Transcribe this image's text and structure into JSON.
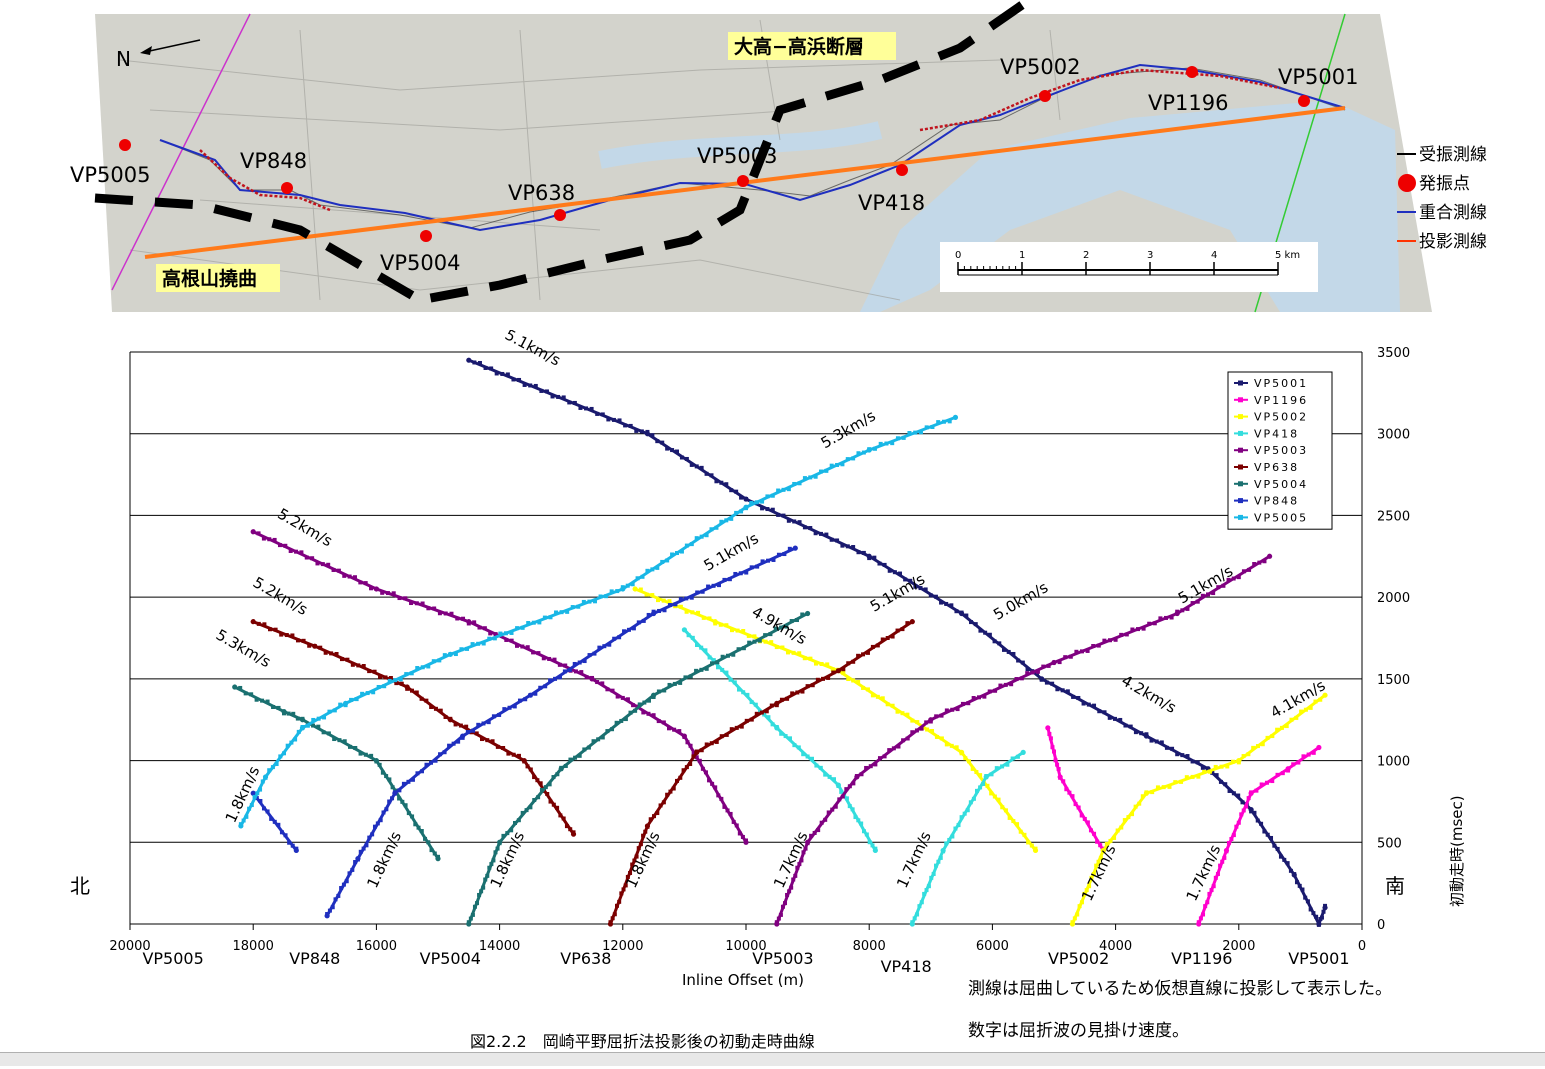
{
  "map": {
    "north_label": "N",
    "fault_label": "大高−高浜断層",
    "flexure_label": "高根山撓曲",
    "vp_labels": [
      {
        "name": "VP5005",
        "lx": 70,
        "ly": 182,
        "dx": 125,
        "dy": 145
      },
      {
        "name": "VP848",
        "lx": 240,
        "ly": 168,
        "dx": 287,
        "dy": 188
      },
      {
        "name": "VP5004",
        "lx": 380,
        "ly": 270,
        "dx": 426,
        "dy": 236
      },
      {
        "name": "VP638",
        "lx": 508,
        "ly": 200,
        "dx": 560,
        "dy": 215
      },
      {
        "name": "VP5003",
        "lx": 697,
        "ly": 163,
        "dx": 743,
        "dy": 181
      },
      {
        "name": "VP418",
        "lx": 858,
        "ly": 210,
        "dx": 902,
        "dy": 170
      },
      {
        "name": "VP5002",
        "lx": 1000,
        "ly": 74,
        "dx": 1045,
        "dy": 96
      },
      {
        "name": "VP1196",
        "lx": 1148,
        "ly": 110,
        "dx": 1192,
        "dy": 72
      },
      {
        "name": "VP5001",
        "lx": 1278,
        "ly": 84,
        "dx": 1304,
        "dy": 101
      }
    ],
    "legend": [
      {
        "label": "受振測線",
        "kind": "line",
        "color": "#000000"
      },
      {
        "label": "発振点",
        "kind": "dot",
        "color": "#ee0000"
      },
      {
        "label": "重合測線",
        "kind": "line",
        "color": "#1f2fbf"
      },
      {
        "label": "投影測線",
        "kind": "line",
        "color": "#ff3300"
      }
    ],
    "scale_ticks": [
      "0",
      "1",
      "2",
      "3",
      "4",
      "5 km"
    ]
  },
  "chart_data": {
    "type": "scatter",
    "xlabel": "Inline Offset (m)",
    "ylabel": "初動走時(msec)",
    "xlim": [
      20000,
      0
    ],
    "ylim": [
      0,
      3500
    ],
    "x_ticks": [
      20000,
      18000,
      16000,
      14000,
      12000,
      10000,
      8000,
      6000,
      4000,
      2000,
      0
    ],
    "x_tick_labels": [
      "20000",
      "18000",
      "16000",
      "14000",
      "12000",
      "10000",
      "8000",
      "6000",
      "4000",
      "2000",
      "0"
    ],
    "y_ticks": [
      0,
      500,
      1000,
      1500,
      2000,
      2500,
      3000,
      3500
    ],
    "y_tick_labels": [
      "0",
      "500",
      "1000",
      "1500",
      "2000",
      "2500",
      "3000",
      "3500"
    ],
    "grid": true,
    "legend_position": "top-right",
    "vp_axis_labels": [
      {
        "label": "VP5005",
        "x": 19300,
        "row": 0
      },
      {
        "label": "VP848",
        "x": 17000,
        "row": 0
      },
      {
        "label": "VP5004",
        "x": 14800,
        "row": 0
      },
      {
        "label": "VP638",
        "x": 12600,
        "row": 0
      },
      {
        "label": "VP5003",
        "x": 9400,
        "row": 0
      },
      {
        "label": "VP418",
        "x": 7400,
        "row": 1
      },
      {
        "label": "VP5002",
        "x": 4600,
        "row": 0
      },
      {
        "label": "VP1196",
        "x": 2600,
        "row": 0
      },
      {
        "label": "VP5001",
        "x": 700,
        "row": 0
      }
    ],
    "series": [
      {
        "name": "VP5001",
        "color": "#1a1a6e",
        "points": [
          [
            600,
            100
          ],
          [
            700,
            0
          ],
          [
            1100,
            300
          ],
          [
            1800,
            700
          ],
          [
            2500,
            950
          ],
          [
            3500,
            1150
          ],
          [
            5200,
            1500
          ],
          [
            6500,
            1900
          ],
          [
            8000,
            2250
          ],
          [
            10000,
            2600
          ],
          [
            11600,
            3000
          ],
          [
            14500,
            3450
          ]
        ]
      },
      {
        "name": "VP1196",
        "color": "#ff00cc",
        "points": [
          [
            2650,
            0
          ],
          [
            2200,
            450
          ],
          [
            1800,
            800
          ],
          [
            1200,
            950
          ],
          [
            700,
            1080
          ],
          [
            4200,
            450
          ],
          [
            4900,
            900
          ],
          [
            5100,
            1200
          ]
        ]
      },
      {
        "name": "VP5002",
        "color": "#ffff00",
        "points": [
          [
            4700,
            0
          ],
          [
            4200,
            450
          ],
          [
            3500,
            800
          ],
          [
            2000,
            1000
          ],
          [
            600,
            1400
          ],
          [
            5300,
            450
          ],
          [
            6500,
            1050
          ],
          [
            8500,
            1550
          ],
          [
            10500,
            1850
          ],
          [
            11800,
            2050
          ]
        ]
      },
      {
        "name": "VP418",
        "color": "#33dddd",
        "points": [
          [
            7300,
            0
          ],
          [
            6800,
            450
          ],
          [
            6100,
            900
          ],
          [
            5500,
            1050
          ],
          [
            7900,
            450
          ],
          [
            8500,
            850
          ],
          [
            9500,
            1200
          ],
          [
            11000,
            1800
          ]
        ]
      },
      {
        "name": "VP5003",
        "color": "#800080",
        "points": [
          [
            9500,
            0
          ],
          [
            9000,
            500
          ],
          [
            8200,
            900
          ],
          [
            7000,
            1250
          ],
          [
            5000,
            1600
          ],
          [
            3000,
            1900
          ],
          [
            1500,
            2250
          ],
          [
            10000,
            500
          ],
          [
            11000,
            1150
          ],
          [
            12500,
            1500
          ],
          [
            14500,
            1850
          ],
          [
            16000,
            2050
          ],
          [
            18000,
            2400
          ]
        ]
      },
      {
        "name": "VP638",
        "color": "#7b0000",
        "points": [
          [
            12200,
            0
          ],
          [
            11600,
            600
          ],
          [
            10800,
            1050
          ],
          [
            9500,
            1350
          ],
          [
            8500,
            1550
          ],
          [
            7300,
            1850
          ],
          [
            12800,
            550
          ],
          [
            13600,
            1000
          ],
          [
            14800,
            1250
          ],
          [
            15500,
            1450
          ],
          [
            17000,
            1700
          ],
          [
            18000,
            1850
          ]
        ]
      },
      {
        "name": "VP5004",
        "color": "#1a7070",
        "points": [
          [
            14500,
            0
          ],
          [
            14000,
            500
          ],
          [
            13000,
            950
          ],
          [
            11500,
            1400
          ],
          [
            9000,
            1900
          ],
          [
            15000,
            400
          ],
          [
            16000,
            1000
          ],
          [
            17200,
            1250
          ],
          [
            17500,
            1300
          ],
          [
            18300,
            1450
          ]
        ]
      },
      {
        "name": "VP848",
        "color": "#1f2fbf",
        "points": [
          [
            16800,
            50
          ],
          [
            16300,
            400
          ],
          [
            15700,
            800
          ],
          [
            14600,
            1150
          ],
          [
            13500,
            1400
          ],
          [
            11500,
            1900
          ],
          [
            9200,
            2300
          ],
          [
            17300,
            450
          ],
          [
            18000,
            800
          ]
        ]
      },
      {
        "name": "VP5005",
        "color": "#19b7e6",
        "points": [
          [
            18200,
            600
          ],
          [
            17800,
            900
          ],
          [
            17200,
            1200
          ],
          [
            16500,
            1350
          ],
          [
            14800,
            1650
          ],
          [
            12000,
            2050
          ],
          [
            10000,
            2550
          ],
          [
            8000,
            2900
          ],
          [
            6600,
            3100
          ]
        ]
      }
    ],
    "velocity_labels": [
      {
        "text": "5.1km/s",
        "x": 13500,
        "y": 3500,
        "angle": 28
      },
      {
        "text": "5.3km/s",
        "x": 8300,
        "y": 3000,
        "angle": -30
      },
      {
        "text": "5.2km/s",
        "x": 17200,
        "y": 2400,
        "angle": 30
      },
      {
        "text": "5.1km/s",
        "x": 10200,
        "y": 2250,
        "angle": -30
      },
      {
        "text": "5.1km/s",
        "x": 7500,
        "y": 2000,
        "angle": -30
      },
      {
        "text": "5.0km/s",
        "x": 5500,
        "y": 1950,
        "angle": -30
      },
      {
        "text": "5.1km/s",
        "x": 2500,
        "y": 2050,
        "angle": -30
      },
      {
        "text": "5.2km/s",
        "x": 17600,
        "y": 1980,
        "angle": 30
      },
      {
        "text": "4.9km/s",
        "x": 9500,
        "y": 1800,
        "angle": 30
      },
      {
        "text": "5.3km/s",
        "x": 18200,
        "y": 1660,
        "angle": 30
      },
      {
        "text": "4.2km/s",
        "x": 3500,
        "y": 1380,
        "angle": 30
      },
      {
        "text": "4.1km/s",
        "x": 1000,
        "y": 1350,
        "angle": -30
      },
      {
        "text": "1.8km/s",
        "x": 18100,
        "y": 780,
        "angle": -65
      },
      {
        "text": "1.8km/s",
        "x": 15800,
        "y": 380,
        "angle": -65
      },
      {
        "text": "1.8km/s",
        "x": 13800,
        "y": 380,
        "angle": -65
      },
      {
        "text": "1.8km/s",
        "x": 11600,
        "y": 380,
        "angle": -65
      },
      {
        "text": "1.7km/s",
        "x": 9200,
        "y": 380,
        "angle": -65
      },
      {
        "text": "1.7km/s",
        "x": 7200,
        "y": 380,
        "angle": -65
      },
      {
        "text": "1.7km/s",
        "x": 4200,
        "y": 300,
        "angle": -65
      },
      {
        "text": "1.7km/s",
        "x": 2500,
        "y": 300,
        "angle": -65
      }
    ],
    "north_label": "北",
    "south_label": "南"
  },
  "notes": [
    "測線は屈曲しているため仮想直線に投影して表示した。",
    "数字は屈折波の見掛け速度。"
  ],
  "caption": "図2.2.2　岡崎平野屈折法投影後の初動走時曲線"
}
